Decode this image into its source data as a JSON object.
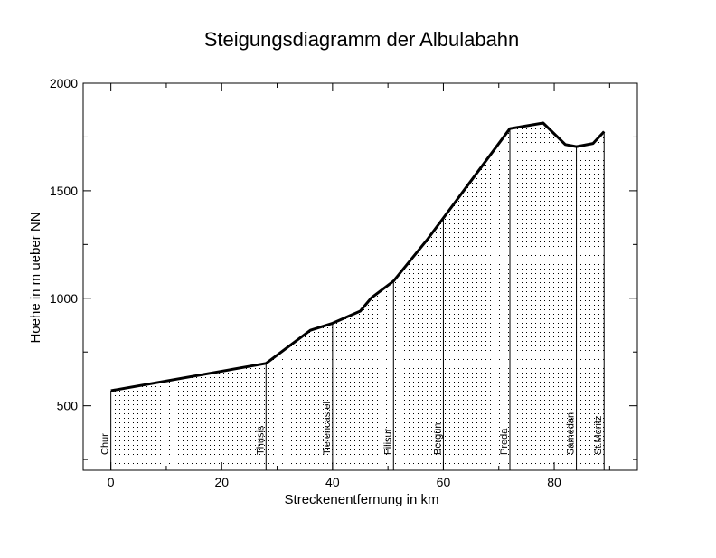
{
  "chart_data": {
    "type": "area",
    "title": "Steigungsdiagramm der Albulabahn",
    "xlabel": "Streckenentfernung in km",
    "ylabel": "Hoehe in m ueber NN",
    "xlim": [
      -5,
      95
    ],
    "ylim": [
      200,
      2000
    ],
    "xticks": [
      0,
      20,
      40,
      60,
      80
    ],
    "yticks": [
      500,
      1000,
      1500,
      2000
    ],
    "fill": "dotted",
    "line_color": "#000000",
    "profile": [
      {
        "x": 0,
        "y": 570
      },
      {
        "x": 28,
        "y": 697
      },
      {
        "x": 36,
        "y": 851
      },
      {
        "x": 40,
        "y": 884
      },
      {
        "x": 45,
        "y": 940
      },
      {
        "x": 47,
        "y": 1002
      },
      {
        "x": 51,
        "y": 1080
      },
      {
        "x": 57,
        "y": 1270
      },
      {
        "x": 60,
        "y": 1373
      },
      {
        "x": 72,
        "y": 1789
      },
      {
        "x": 78,
        "y": 1815
      },
      {
        "x": 82,
        "y": 1715
      },
      {
        "x": 84,
        "y": 1705
      },
      {
        "x": 87,
        "y": 1720
      },
      {
        "x": 89,
        "y": 1775
      }
    ],
    "stations": [
      {
        "name": "Chur",
        "x": 0
      },
      {
        "name": "Thusis",
        "x": 28
      },
      {
        "name": "Tiefencastel",
        "x": 40
      },
      {
        "name": "Filisur",
        "x": 51
      },
      {
        "name": "Bergün",
        "x": 60
      },
      {
        "name": "Preda",
        "x": 72
      },
      {
        "name": "Samedan",
        "x": 84
      },
      {
        "name": "St.Moritz",
        "x": 89
      }
    ]
  }
}
